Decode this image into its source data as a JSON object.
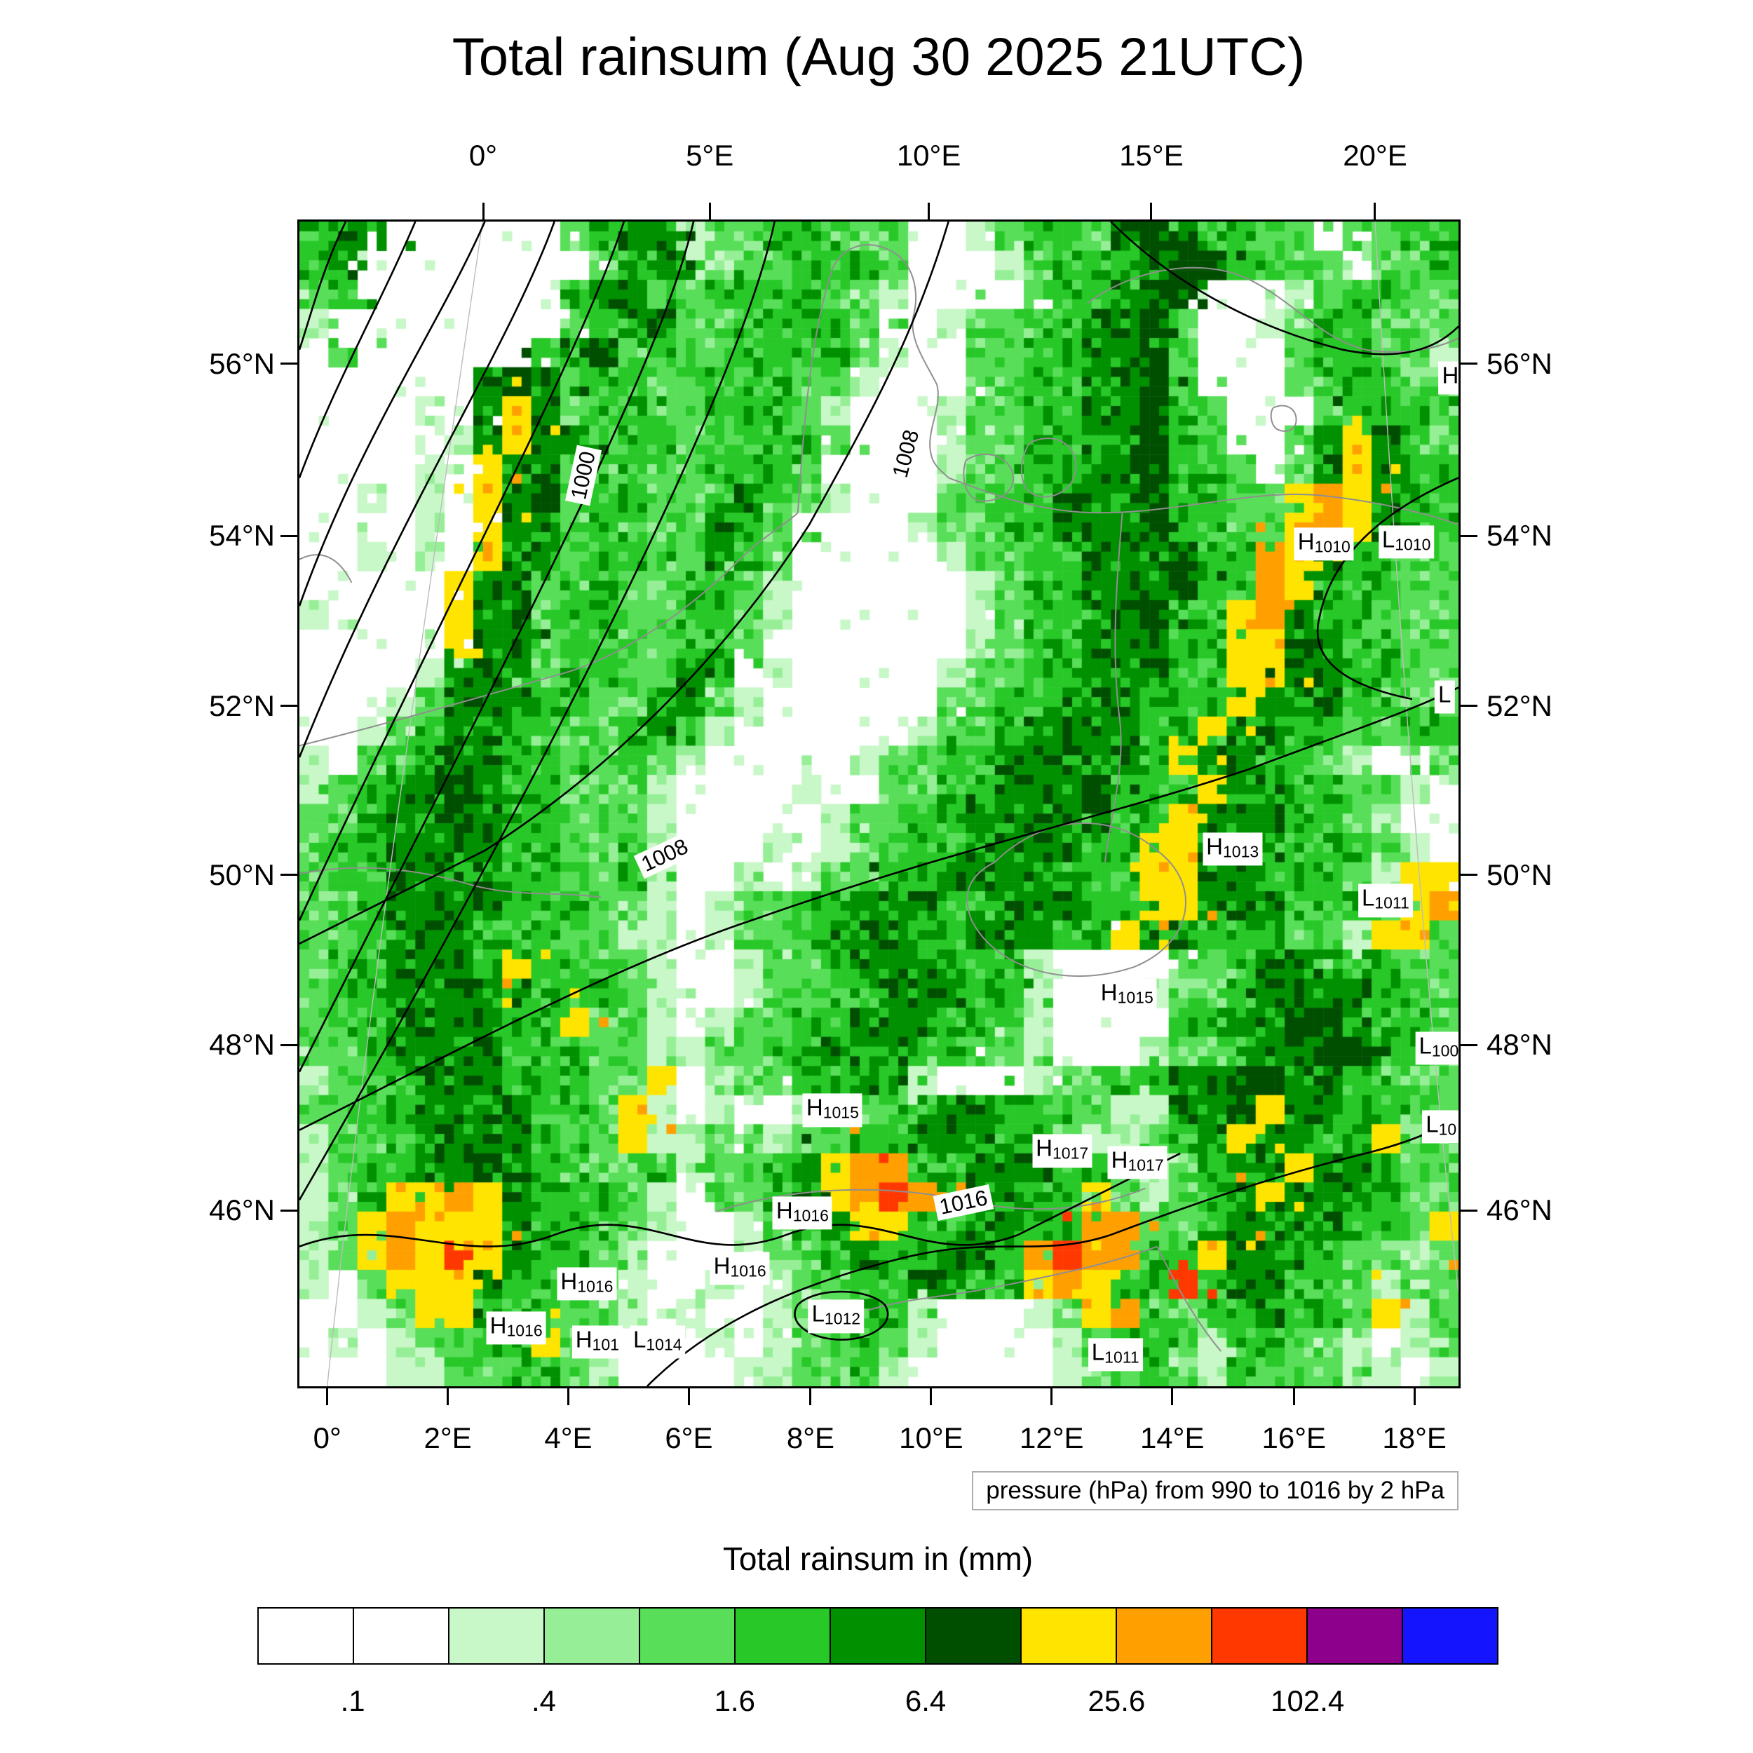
{
  "chart_data": {
    "type": "heatmap",
    "subtype": "precipitation-map-with-isobars",
    "title": "Total rainsum (Aug 30 2025 21UTC)",
    "pressure_caption": "pressure (hPa) from 990 to 1016 by 2 hPa",
    "legend": {
      "title": "Total rainsum in (mm)",
      "colors": [
        "#FFFFFF",
        "#FFFFFF",
        "#C8F7C8",
        "#96EF96",
        "#58DE58",
        "#28C828",
        "#009000",
        "#004F00",
        "#FFE400",
        "#FFA000",
        "#FF3800",
        "#8C008C",
        "#1414FF"
      ],
      "labels": [
        ".1",
        ".4",
        "1.6",
        "6.4",
        "25.6",
        "102.4"
      ],
      "label_boundaries": [
        1,
        3,
        5,
        7,
        9,
        11
      ]
    },
    "axes": {
      "top_lon": [
        {
          "label": "0°",
          "pct": 15.85
        },
        {
          "label": "5°E",
          "pct": 35.4
        },
        {
          "label": "10°E",
          "pct": 54.3
        },
        {
          "label": "15°E",
          "pct": 73.5
        },
        {
          "label": "20°E",
          "pct": 92.8
        }
      ],
      "bottom_lon": [
        {
          "label": "0°",
          "pct": 2.4
        },
        {
          "label": "2°E",
          "pct": 12.8
        },
        {
          "label": "4°E",
          "pct": 23.2
        },
        {
          "label": "6°E",
          "pct": 33.6
        },
        {
          "label": "8°E",
          "pct": 44.1
        },
        {
          "label": "10°E",
          "pct": 54.5
        },
        {
          "label": "12°E",
          "pct": 64.9
        },
        {
          "label": "14°E",
          "pct": 75.3
        },
        {
          "label": "16°E",
          "pct": 85.8
        },
        {
          "label": "18°E",
          "pct": 96.2
        }
      ],
      "lat": [
        {
          "label": "56°N",
          "pct": 12.2
        },
        {
          "label": "54°N",
          "pct": 27.0
        },
        {
          "label": "52°N",
          "pct": 41.6
        },
        {
          "label": "50°N",
          "pct": 56.1
        },
        {
          "label": "48°N",
          "pct": 70.7
        },
        {
          "label": "46°N",
          "pct": 84.9
        }
      ]
    },
    "contour_labels": [
      {
        "text": "1000",
        "x": 24.5,
        "y": 21.8,
        "rot": -78
      },
      {
        "text": "1008",
        "x": 52.3,
        "y": 19.9,
        "rot": -75
      },
      {
        "text": "1008",
        "x": 31.5,
        "y": 54.4,
        "rot": -25
      },
      {
        "text": "1016",
        "x": 57.3,
        "y": 84.2,
        "rot": -12
      }
    ],
    "pressure_centers": [
      {
        "type": "H",
        "value": "",
        "x": 99.3,
        "y": 13.4
      },
      {
        "type": "H",
        "value": "1010",
        "x": 88.4,
        "y": 27.7
      },
      {
        "type": "L",
        "value": "1010",
        "x": 95.5,
        "y": 27.5
      },
      {
        "type": "L",
        "value": "",
        "x": 98.8,
        "y": 40.8
      },
      {
        "type": "H",
        "value": "1013",
        "x": 80.5,
        "y": 53.9
      },
      {
        "type": "L",
        "value": "1011",
        "x": 93.7,
        "y": 58.3
      },
      {
        "type": "H",
        "value": "1015",
        "x": 71.4,
        "y": 66.4
      },
      {
        "type": "L",
        "value": "100",
        "x": 98.3,
        "y": 71.0
      },
      {
        "type": "L",
        "value": "10",
        "x": 98.5,
        "y": 77.7
      },
      {
        "type": "H",
        "value": "1015",
        "x": 46.0,
        "y": 76.3
      },
      {
        "type": "H",
        "value": "1017",
        "x": 65.8,
        "y": 79.8
      },
      {
        "type": "H",
        "value": "1017",
        "x": 72.3,
        "y": 80.8
      },
      {
        "type": "H",
        "value": "1016",
        "x": 43.4,
        "y": 85.1
      },
      {
        "type": "H",
        "value": "1016",
        "x": 38.0,
        "y": 89.9
      },
      {
        "type": "H",
        "value": "1016",
        "x": 24.8,
        "y": 91.2
      },
      {
        "type": "H",
        "value": "1016",
        "x": 18.7,
        "y": 95.0
      },
      {
        "type": "H",
        "value": "101",
        "x": 25.7,
        "y": 96.2
      },
      {
        "type": "L",
        "value": "1014",
        "x": 30.9,
        "y": 96.2
      },
      {
        "type": "L",
        "value": "1012",
        "x": 46.3,
        "y": 94.0
      },
      {
        "type": "L",
        "value": "1011",
        "x": 70.4,
        "y": 97.3
      }
    ],
    "contours": [
      "M 4,0 C 2,4 1,8 0,11",
      "M 10,0 C 7,7 3,14 0,22",
      "M 16,0 C 12,9 5,19 0,33",
      "M 22,0 C 18,11 8,26 0,46",
      "M 28,0 C 24,12 13,32 0,60",
      "M 34,0 C 31,13 17,39 0,73",
      "M 41,0 C 38,14 22,46 0,84",
      "M 56,0 C 53,10 49,17 44,26 C 37,37 27,47 16,54 C 10,57 4,60 0,62",
      "M 0,78 C 14,71 27,64 39,60 C 56,54 70,51 82,47 C 90,44 96,42 100,40",
      "M 100,22 C 93,25 89,29 88,34 C 87,38 91,40 96,41",
      "M 70,0 C 75,5 82,9 90,11 C 95,12 98,11 100,9",
      "M 0,88 C 8,85 14,90 22,87 C 30,84 34,90 42,87 C 50,84 54,90 62,87 C 68,84 72,82 76,80",
      "M 30,100 C 36,94 44,91 52,89 C 60,87 64,89 70,87 C 78,84 84,82 92,80 C 96,79 98,78 100,77",
      "M 43,93 C 44.5,91.5 49,91.5 50.5,93 C 51.5,94.5 49.5,96 46.8,96 C 44,96 42,94.5 43,93"
    ],
    "coastlines": [
      "M 43,25 C 43.5,18 44,10 46,4 C 47,2 49,1.5 51,2.5 C 53,3.5 53.5,6 53,8 C 52.5,10 54,12 55,14 C 55.5,16 54,18 54.5,20 C 54.7,21 55.5,21.5 56,22",
      "M 57.5,20.5 C 59,19.5 61,20 61.5,21.5 C 62,23 60.5,24 59,24 C 57.5,24 57,22 57.5,20.5",
      "M 63,19 C 65,18 67,19 67,21 C 67,23 65,24 63.5,23.5 C 62,23 62,20.5 63,19",
      "M 0,45 C 8,43 15,41 22,39 C 28,37.5 34,33 38,29 C 40,27 42,26 43,25",
      "M 56,22 C 60,23.5 64,25 69,25 C 76,25 82,23 88,23.5 C 93,24 97,25 100,26",
      "M 68,7 C 72,4 78,3 82,5 C 86,7 88,10 92,11 C 95,11.5 98,11 100,10",
      "M 84,16 C 85,15.5 86,16 86,17 C 86,18 85,18.2 84.3,17.8 C 83.8,17.4 83.7,16.5 84,16",
      "M 71,25 C 70.5,31 70,37 70.8,43 C 71.2,47 70,51 69.5,55",
      "M 60,55 C 64,51 70,50.5 74,54 C 78,57 77,62 72,64 C 66,66 60,64 58,60 C 57,57.5 58,56 60,55",
      "M 36,85 C 42,83 50,82.5 57,84 C 63,85.3 68,85 73,83",
      "M 74,88 C 70,89.5 65,90.5 60,91.5 C 56,92.3 52,92.5 49,93.5",
      "M 74,88 C 75.5,91 77,94 79.5,97",
      "M 0,29 C 2,28 3.5,29 4.5,31",
      "M 0,56 C 5,55 10,55.5 15,57 C 19,58 22,57.5 26,58"
    ],
    "graticule": [
      "M 15.8,0 C 11,33 6,66 2.4,100",
      "M 92.8,0 C 94.5,30 97,65 100,92"
    ],
    "raster": {
      "cols": 40,
      "rows": 40,
      "encoding": {
        ".": 0,
        "1": 1,
        "2": 2,
        "3": 3,
        "4": 4,
        "5": 5,
        "6": 6,
        "7": 7,
        "y": 8,
        "o": 9,
        "r": 10,
        "p": 11,
        "b": 12
      },
      "rows_data": [
        "566......456624455544..245546775544.4455",
        "56........45663445554...245556775544.445",
        "45.......566445555442....455667...245544",
        "2........45664455554..244556674..2455444",
        ".4......5674544555542..44556674...455442",
        "......67645544555442...44556674...455544",
        "....2.6y64554455542...2445566754...45554",
        ".....26y66455445554...2445566754..46y654",
        "....2.y66455445554....24455667554.46y655",
        "..2.2.y674554456542...445566675544yoy655",
        "....2.y6645544654....2445566675544yoy655",
        "..2.2.y6645544654.....24455666755oy65544",
        ".....y66455445542......2455666755oy65544",
        "2....y67455445542......245566755yo655444",
        ".....y6645544554.......245566655yy665544",
        "....26664554465.2.....2445566655yy665544",
        "...2466655445642......4455666555y6665544",
        "..2456655445642......2445666655y66554455",
        "2.456665544542.....24455667665y665542..4",
        "2456676554442....2..44556667555y6655442.",
        "4456676554442.....244556666755y6665542..",
        "4556666554452...2.24455666655yy66655542.",
        "4556666554452..2.244556666555yy6655542yy",
        "4456666555442.244556665566655yy6665554yo",
        "4456665554422.24456665566655y66555442yy4",
        "4556665y55442..24456665552....4456665544",
        "4556666655542..24455666552...24456666554",
        "455666655y442.244556665552....5566776554",
        "44566665554422445566655442...24456677554",
        "245566655544y.24455652...244556677665544",
        "44556666554y2.2..2445566554422667y665544",
        "24456666544y22442445566655422456y6655y44",
        "245566765544524456yoo5566655424566y66544",
        "245yyoy655542.4456yoro56655y42456y666544",
        "24yoyyy655542..2456yy556655oo4456666554y",
        "24yoyry65542...2445655665oroo55y66554424",
        "2.4yyy655442..2.244556655yoy55r566554244",
        "..24yy655442.2..244552...24yo54556554y24",
        ".2.24455y42...2.244542....24554255442.24",
        "...22445542....224452.....244542544422.2"
      ]
    }
  }
}
